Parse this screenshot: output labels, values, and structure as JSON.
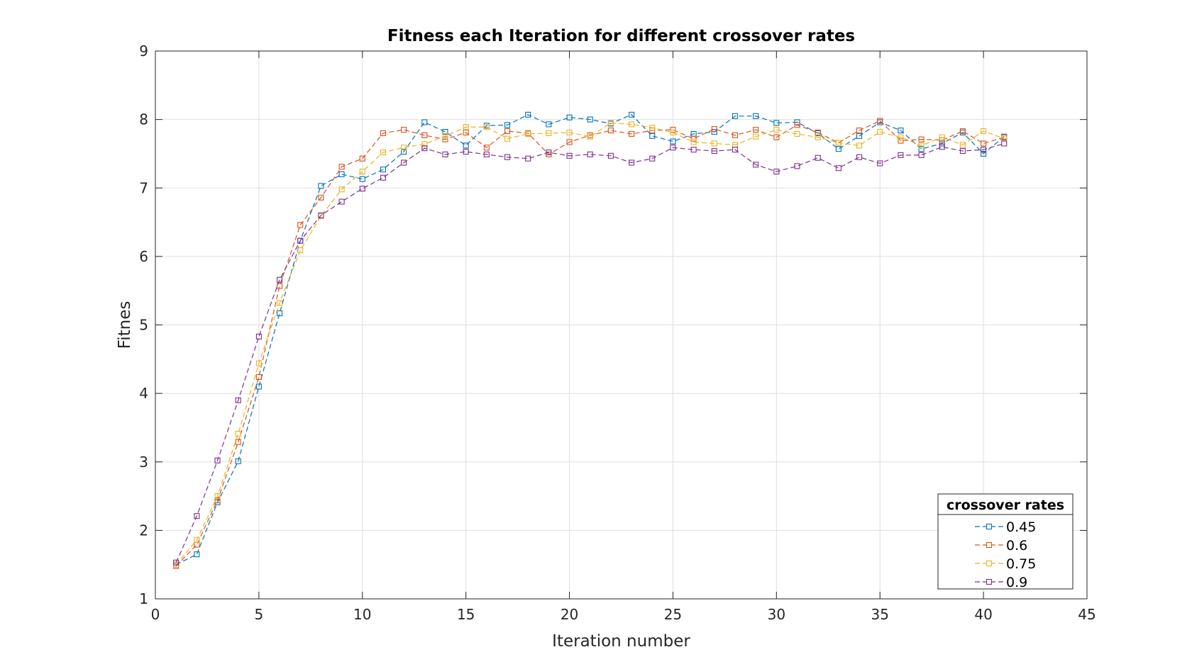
{
  "chart_data": {
    "type": "line",
    "title": "Fitness each Iteration for different crossover rates",
    "xlabel": "Iteration number",
    "ylabel": "Fitnes",
    "xlim": [
      0,
      45
    ],
    "ylim": [
      1,
      9
    ],
    "xticks": [
      0,
      5,
      10,
      15,
      20,
      25,
      30,
      35,
      40,
      45
    ],
    "yticks": [
      1,
      2,
      3,
      4,
      5,
      6,
      7,
      8,
      9
    ],
    "grid": true,
    "legend": {
      "title": "crossover rates",
      "placement": "bottom-right"
    },
    "x": [
      1,
      2,
      3,
      4,
      5,
      6,
      7,
      8,
      9,
      10,
      11,
      12,
      13,
      14,
      15,
      16,
      17,
      18,
      19,
      20,
      21,
      22,
      23,
      24,
      25,
      26,
      27,
      28,
      29,
      30,
      31,
      32,
      33,
      34,
      35,
      36,
      37,
      38,
      39,
      40,
      41
    ],
    "series": [
      {
        "name": "0.45",
        "color": "#0072BD",
        "values": [
          1.5,
          1.65,
          2.41,
          3.01,
          4.1,
          5.17,
          6.23,
          7.03,
          7.2,
          7.13,
          7.27,
          7.53,
          7.96,
          7.82,
          7.62,
          7.91,
          7.92,
          8.07,
          7.93,
          8.03,
          8.0,
          7.94,
          8.07,
          7.76,
          7.68,
          7.79,
          7.82,
          8.05,
          8.05,
          7.95,
          7.96,
          7.8,
          7.57,
          7.76,
          7.96,
          7.84,
          7.57,
          7.65,
          7.81,
          7.5,
          7.75
        ]
      },
      {
        "name": "0.6",
        "color": "#D95319",
        "values": [
          1.48,
          1.79,
          2.44,
          3.29,
          4.24,
          5.57,
          6.46,
          6.86,
          7.31,
          7.43,
          7.8,
          7.85,
          7.77,
          7.71,
          7.81,
          7.59,
          7.83,
          7.8,
          7.49,
          7.67,
          7.77,
          7.84,
          7.79,
          7.84,
          7.85,
          7.72,
          7.86,
          7.77,
          7.85,
          7.74,
          7.92,
          7.81,
          7.66,
          7.84,
          7.98,
          7.69,
          7.71,
          7.7,
          7.83,
          7.65,
          7.74
        ]
      },
      {
        "name": "0.75",
        "color": "#EDB120",
        "values": [
          1.5,
          1.86,
          2.5,
          3.41,
          4.44,
          5.32,
          6.09,
          6.59,
          6.98,
          7.24,
          7.52,
          7.59,
          7.64,
          7.76,
          7.89,
          7.89,
          7.72,
          7.79,
          7.8,
          7.81,
          7.75,
          7.95,
          7.93,
          7.88,
          7.81,
          7.67,
          7.65,
          7.63,
          7.75,
          7.85,
          7.79,
          7.74,
          7.66,
          7.62,
          7.82,
          7.74,
          7.62,
          7.74,
          7.63,
          7.83,
          7.72
        ]
      },
      {
        "name": "0.9",
        "color": "#7E2F8E",
        "values": [
          1.53,
          2.21,
          3.02,
          3.9,
          4.83,
          5.66,
          6.23,
          6.6,
          6.8,
          6.99,
          7.15,
          7.37,
          7.58,
          7.49,
          7.53,
          7.49,
          7.45,
          7.43,
          7.52,
          7.47,
          7.49,
          7.47,
          7.37,
          7.43,
          7.59,
          7.56,
          7.54,
          7.56,
          7.34,
          7.24,
          7.32,
          7.44,
          7.29,
          7.45,
          7.36,
          7.48,
          7.48,
          7.6,
          7.54,
          7.56,
          7.65
        ]
      }
    ]
  }
}
